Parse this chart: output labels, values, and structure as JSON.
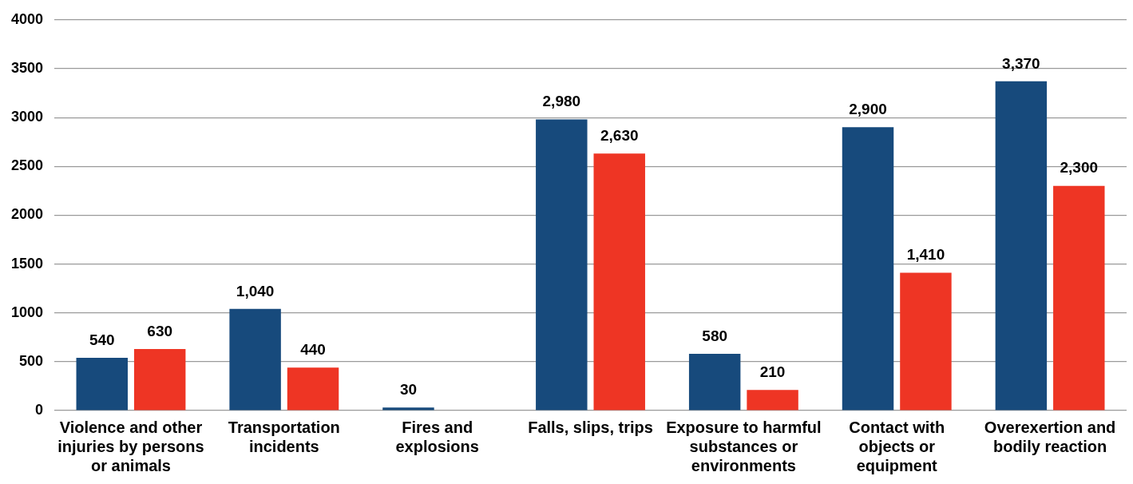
{
  "chart_data": {
    "type": "bar",
    "categories": [
      "Violence and other injuries by persons or animals",
      "Transportation incidents",
      "Fires and explosions",
      "Falls, slips, trips",
      "Exposure to harmful substances or environments",
      "Contact with objects or equipment",
      "Overexertion and bodily reaction"
    ],
    "series": [
      {
        "color": "#174a7c",
        "values": [
          540,
          1040,
          30,
          2980,
          580,
          2900,
          3370
        ],
        "value_labels": [
          "540",
          "1,040",
          "30",
          "2,980",
          "580",
          "2,900",
          "3,370"
        ]
      },
      {
        "color": "#ee3524",
        "values": [
          630,
          440,
          null,
          2630,
          210,
          1410,
          2300
        ],
        "value_labels": [
          "630",
          "440",
          null,
          "2,630",
          "210",
          "1,410",
          "2,300"
        ]
      }
    ],
    "ylim": [
      0,
      4000
    ],
    "yticks": [
      0,
      500,
      1000,
      1500,
      2000,
      2500,
      3000,
      3500,
      4000
    ],
    "grid": "y",
    "legend": false
  }
}
